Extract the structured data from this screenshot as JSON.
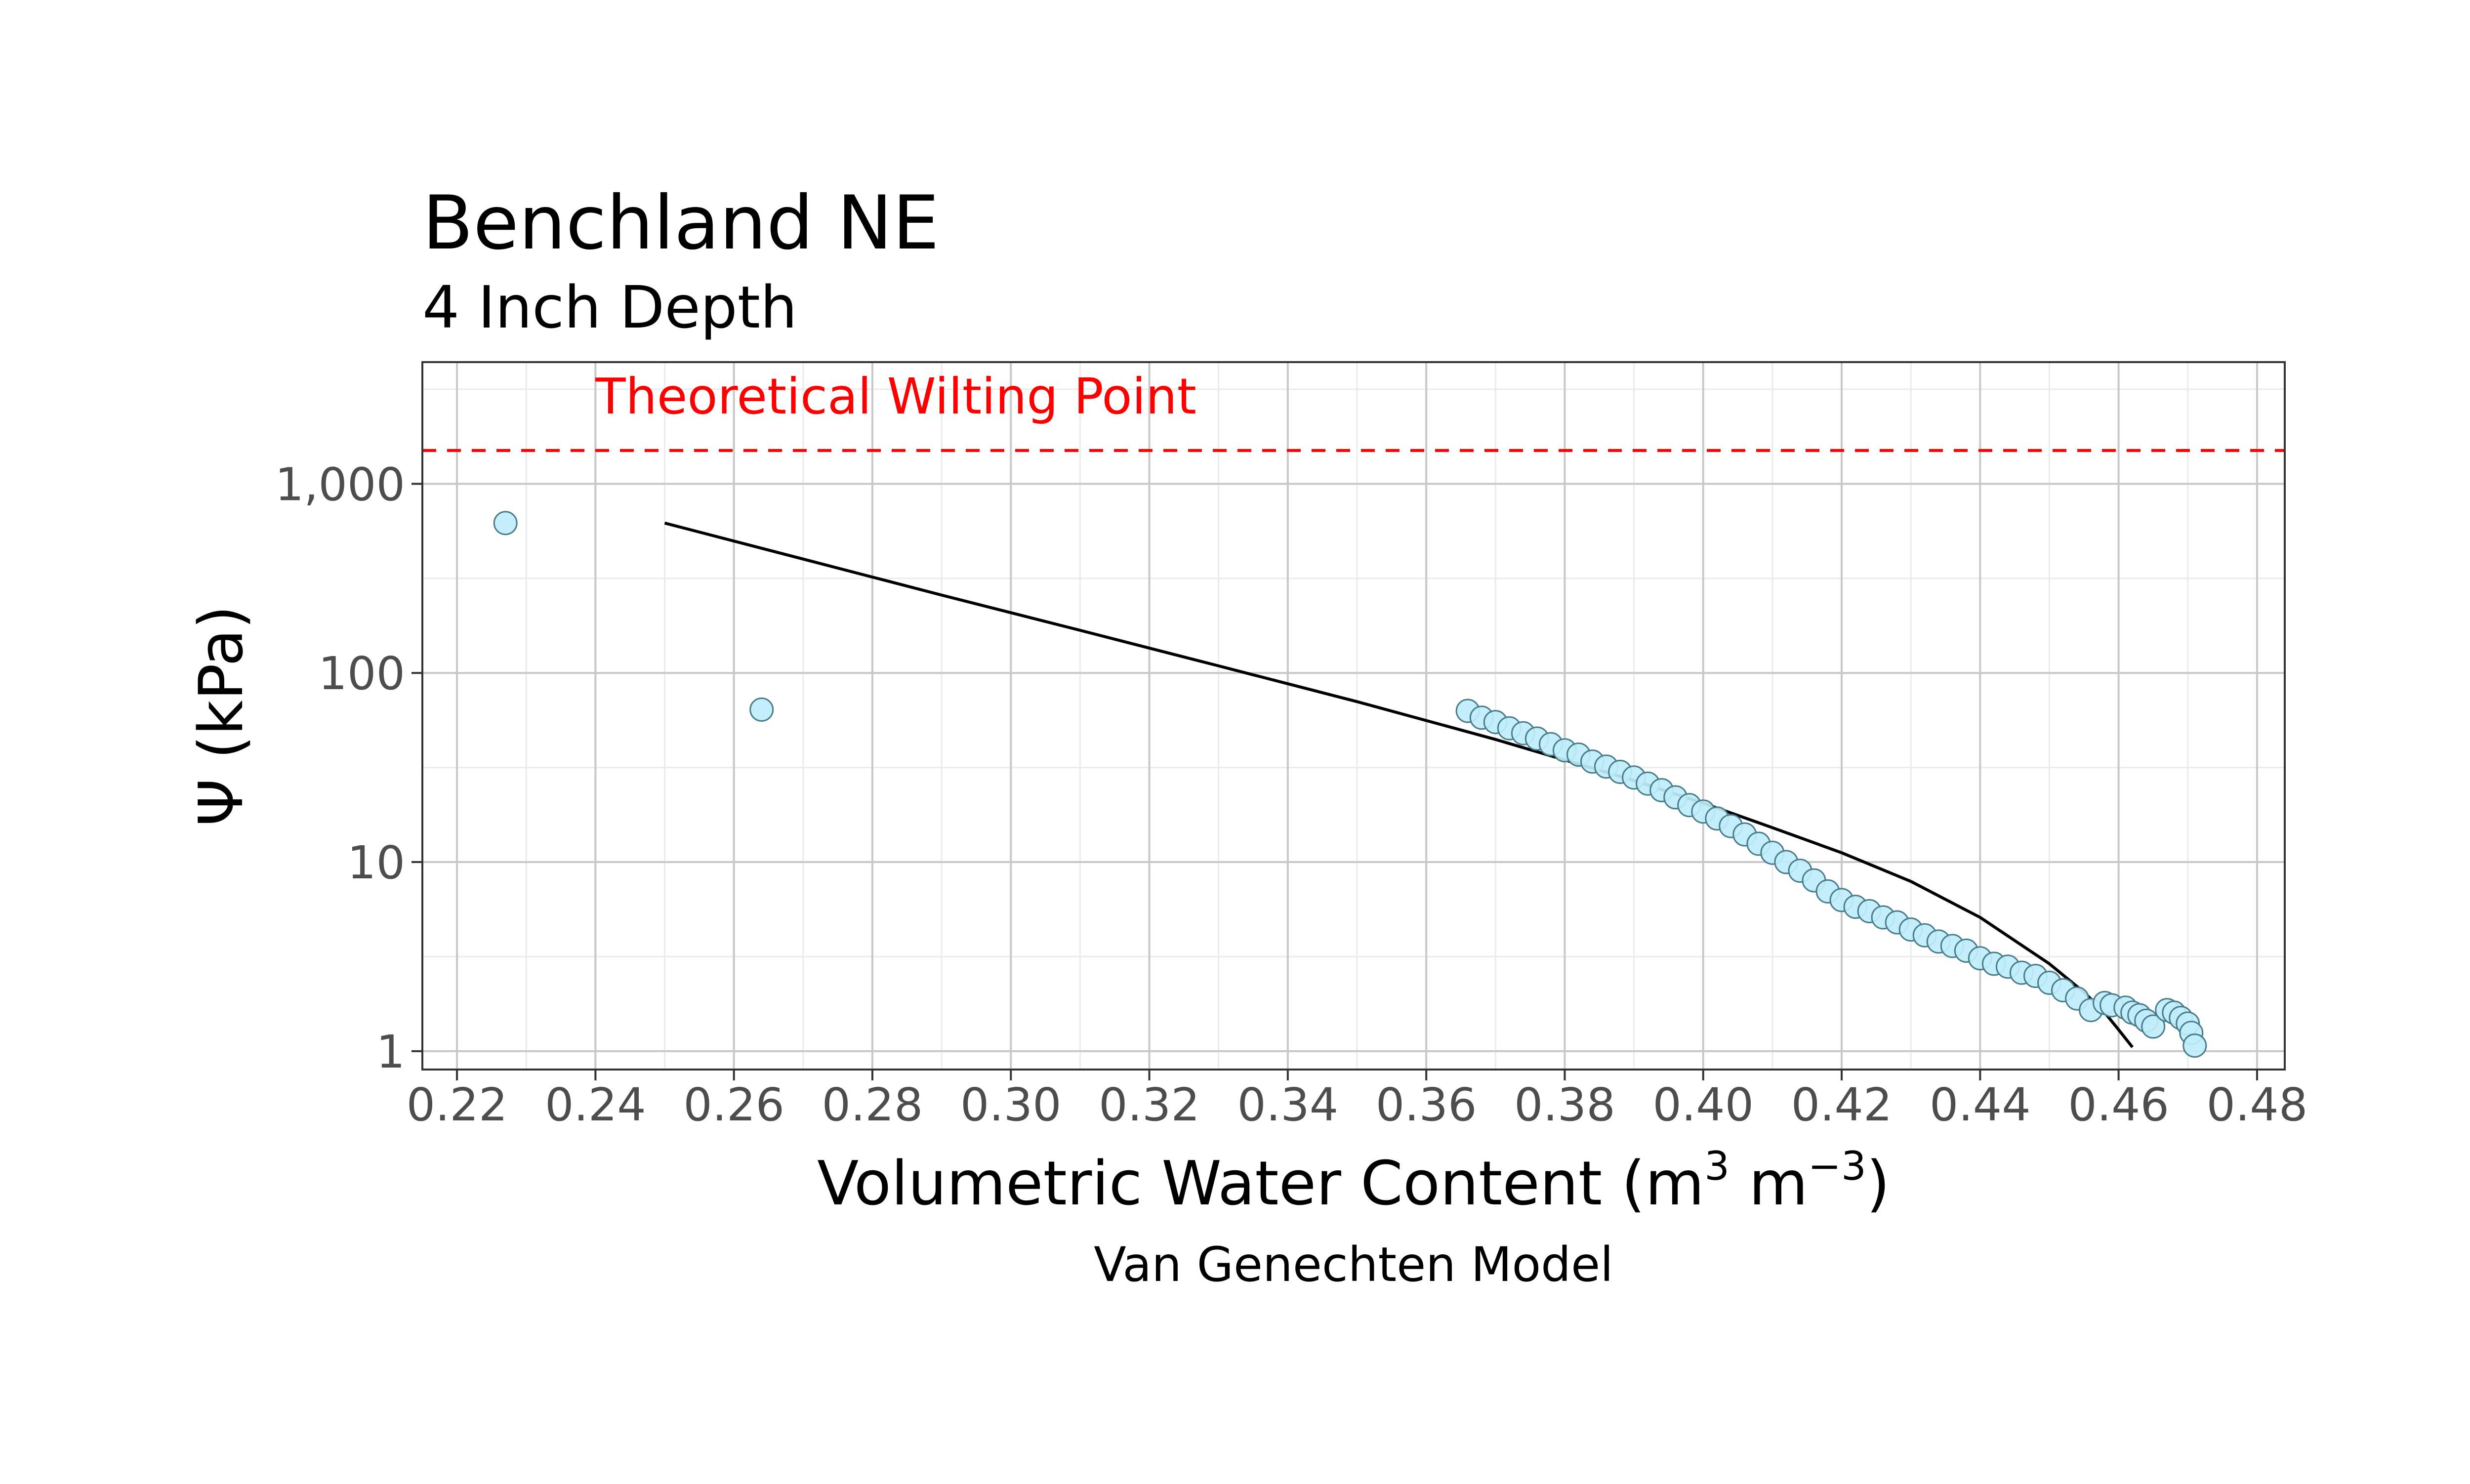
{
  "chart_data": {
    "type": "scatter",
    "title": "Benchland NE",
    "subtitle": "4 Inch Depth",
    "xlabel": {
      "text": "Volumetric Water Content (m",
      "sup1": "3",
      "mid": " m",
      "sup2": "−3",
      "end": ")"
    },
    "ylabel": "Ψ (kPa)",
    "caption": "Van Genechten Model",
    "x_scale": "linear",
    "y_scale": "log10",
    "xlim": [
      0.215,
      0.484
    ],
    "ylim": [
      0.8,
      4400
    ],
    "x_ticks": [
      0.22,
      0.24,
      0.26,
      0.28,
      0.3,
      0.32,
      0.34,
      0.36,
      0.38,
      0.4,
      0.42,
      0.44,
      0.46,
      0.48
    ],
    "x_tick_labels": [
      "0.22",
      "0.24",
      "0.26",
      "0.28",
      "0.30",
      "0.32",
      "0.34",
      "0.36",
      "0.38",
      "0.40",
      "0.42",
      "0.44",
      "0.46",
      "0.48"
    ],
    "y_ticks": [
      1,
      10,
      100,
      1000
    ],
    "y_tick_labels": [
      "1",
      "10",
      "100",
      "1,000"
    ],
    "grid": true,
    "reference_line": {
      "label": "Theoretical Wilting Point",
      "y": 1500,
      "label_x": 0.24,
      "color": "#ff0000",
      "style": "dashed"
    },
    "colors": {
      "point_fill": "#bfeefa",
      "point_stroke": "#4a7d8c",
      "curve": "#000000",
      "grid_major": "#c8c8c8",
      "grid_minor": "#ebebeb",
      "panel_border": "#333333"
    },
    "observed": {
      "x": [
        0.227,
        0.264,
        0.366,
        0.368,
        0.37,
        0.372,
        0.374,
        0.376,
        0.378,
        0.38,
        0.382,
        0.384,
        0.386,
        0.388,
        0.39,
        0.392,
        0.394,
        0.396,
        0.398,
        0.4,
        0.402,
        0.404,
        0.406,
        0.408,
        0.41,
        0.412,
        0.414,
        0.416,
        0.418,
        0.42,
        0.422,
        0.424,
        0.426,
        0.428,
        0.43,
        0.432,
        0.434,
        0.436,
        0.438,
        0.44,
        0.442,
        0.444,
        0.446,
        0.448,
        0.45,
        0.452,
        0.454,
        0.456,
        0.458,
        0.459,
        0.461,
        0.462,
        0.463,
        0.464,
        0.465,
        0.467,
        0.468,
        0.469,
        0.47,
        0.4705,
        0.471
      ],
      "y": [
        620,
        64,
        63,
        58,
        55,
        51,
        48,
        45,
        42,
        39,
        37,
        34,
        32,
        30,
        28,
        26,
        24,
        22,
        20,
        18.5,
        17,
        15.5,
        14,
        12.5,
        11.2,
        10,
        9,
        8,
        7,
        6.3,
        5.8,
        5.5,
        5.1,
        4.8,
        4.4,
        4.1,
        3.8,
        3.6,
        3.4,
        3.1,
        2.9,
        2.8,
        2.6,
        2.5,
        2.3,
        2.1,
        1.9,
        1.65,
        1.8,
        1.75,
        1.7,
        1.6,
        1.55,
        1.45,
        1.35,
        1.65,
        1.6,
        1.5,
        1.4,
        1.25,
        1.07
      ]
    },
    "model_curve": {
      "x": [
        0.25,
        0.27,
        0.29,
        0.31,
        0.33,
        0.35,
        0.37,
        0.39,
        0.4,
        0.41,
        0.42,
        0.43,
        0.44,
        0.45,
        0.455,
        0.458,
        0.46,
        0.462
      ],
      "y": [
        620,
        400,
        258,
        168,
        109,
        70.5,
        44.5,
        27,
        20.5,
        15.2,
        11.2,
        7.9,
        5.1,
        2.9,
        2.05,
        1.6,
        1.3,
        1.05
      ]
    }
  }
}
